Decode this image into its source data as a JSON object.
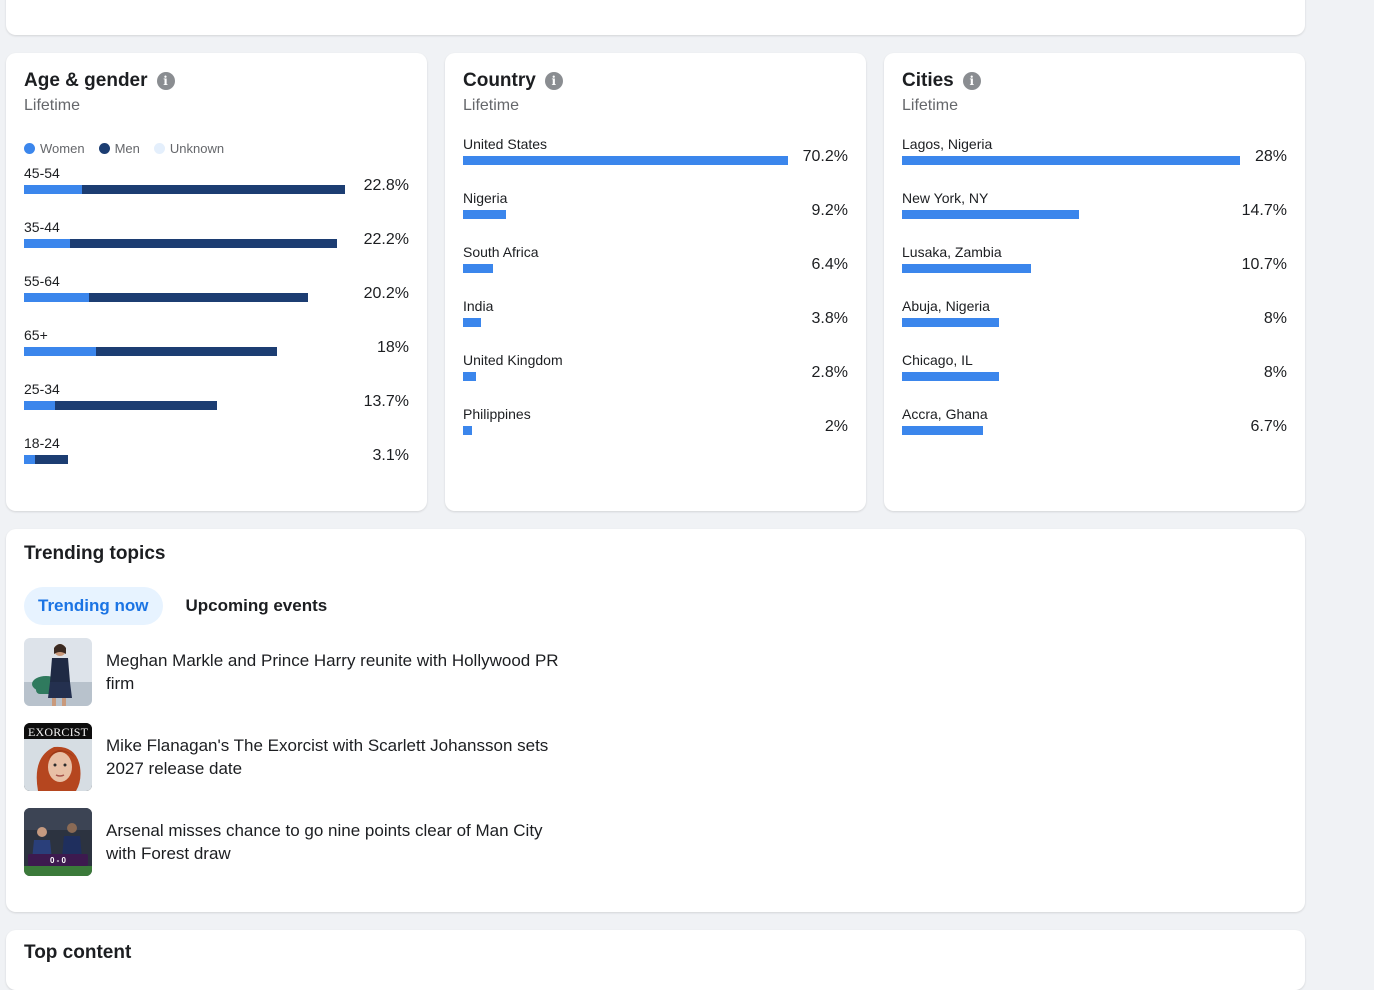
{
  "colors": {
    "women": "#3b86ec",
    "men": "#1c3d72",
    "unknown": "#e4effc",
    "bar": "#3b86ec"
  },
  "age_gender": {
    "title": "Age & gender",
    "subtitle": "Lifetime",
    "legend": {
      "women": "Women",
      "men": "Men",
      "unknown": "Unknown"
    },
    "rows": [
      {
        "label": "45-54",
        "pct": "22.8%",
        "women": 4.1,
        "men": 18.7
      },
      {
        "label": "35-44",
        "pct": "22.2%",
        "women": 3.3,
        "men": 18.9
      },
      {
        "label": "55-64",
        "pct": "20.2%",
        "women": 4.6,
        "men": 15.6
      },
      {
        "label": "65+",
        "pct": "18%",
        "women": 5.1,
        "men": 12.9
      },
      {
        "label": "25-34",
        "pct": "13.7%",
        "women": 2.2,
        "men": 11.5
      },
      {
        "label": "18-24",
        "pct": "3.1%",
        "women": 0.8,
        "men": 2.3
      }
    ]
  },
  "country": {
    "title": "Country",
    "subtitle": "Lifetime",
    "rows": [
      {
        "label": "United States",
        "pct": "70.2%",
        "value": 70.2
      },
      {
        "label": "Nigeria",
        "pct": "9.2%",
        "value": 9.2
      },
      {
        "label": "South Africa",
        "pct": "6.4%",
        "value": 6.4
      },
      {
        "label": "India",
        "pct": "3.8%",
        "value": 3.8
      },
      {
        "label": "United Kingdom",
        "pct": "2.8%",
        "value": 2.8
      },
      {
        "label": "Philippines",
        "pct": "2%",
        "value": 2
      }
    ]
  },
  "cities": {
    "title": "Cities",
    "subtitle": "Lifetime",
    "rows": [
      {
        "label": "Lagos, Nigeria",
        "pct": "28%",
        "value": 28
      },
      {
        "label": "New York, NY",
        "pct": "14.7%",
        "value": 14.7
      },
      {
        "label": "Lusaka, Zambia",
        "pct": "10.7%",
        "value": 10.7
      },
      {
        "label": "Abuja, Nigeria",
        "pct": "8%",
        "value": 8
      },
      {
        "label": "Chicago, IL",
        "pct": "8%",
        "value": 8
      },
      {
        "label": "Accra, Ghana",
        "pct": "6.7%",
        "value": 6.7
      }
    ]
  },
  "trending": {
    "title": "Trending topics",
    "tabs": [
      "Trending now",
      "Upcoming events"
    ],
    "items": [
      {
        "text": "Meghan Markle and Prince Harry reunite with Hollywood PR firm",
        "thumb": "meghan-harry-photo"
      },
      {
        "text": "Mike Flanagan's The Exorcist with Scarlett Johansson sets 2027 release date",
        "thumb": "exorcist-poster",
        "thumb_text": "EXORCIST"
      },
      {
        "text": "Arsenal misses chance to go nine points clear of Man City with Forest draw",
        "thumb": "arsenal-match-photo",
        "thumb_text": "0 - 0"
      }
    ]
  },
  "top_content": {
    "title": "Top content"
  }
}
